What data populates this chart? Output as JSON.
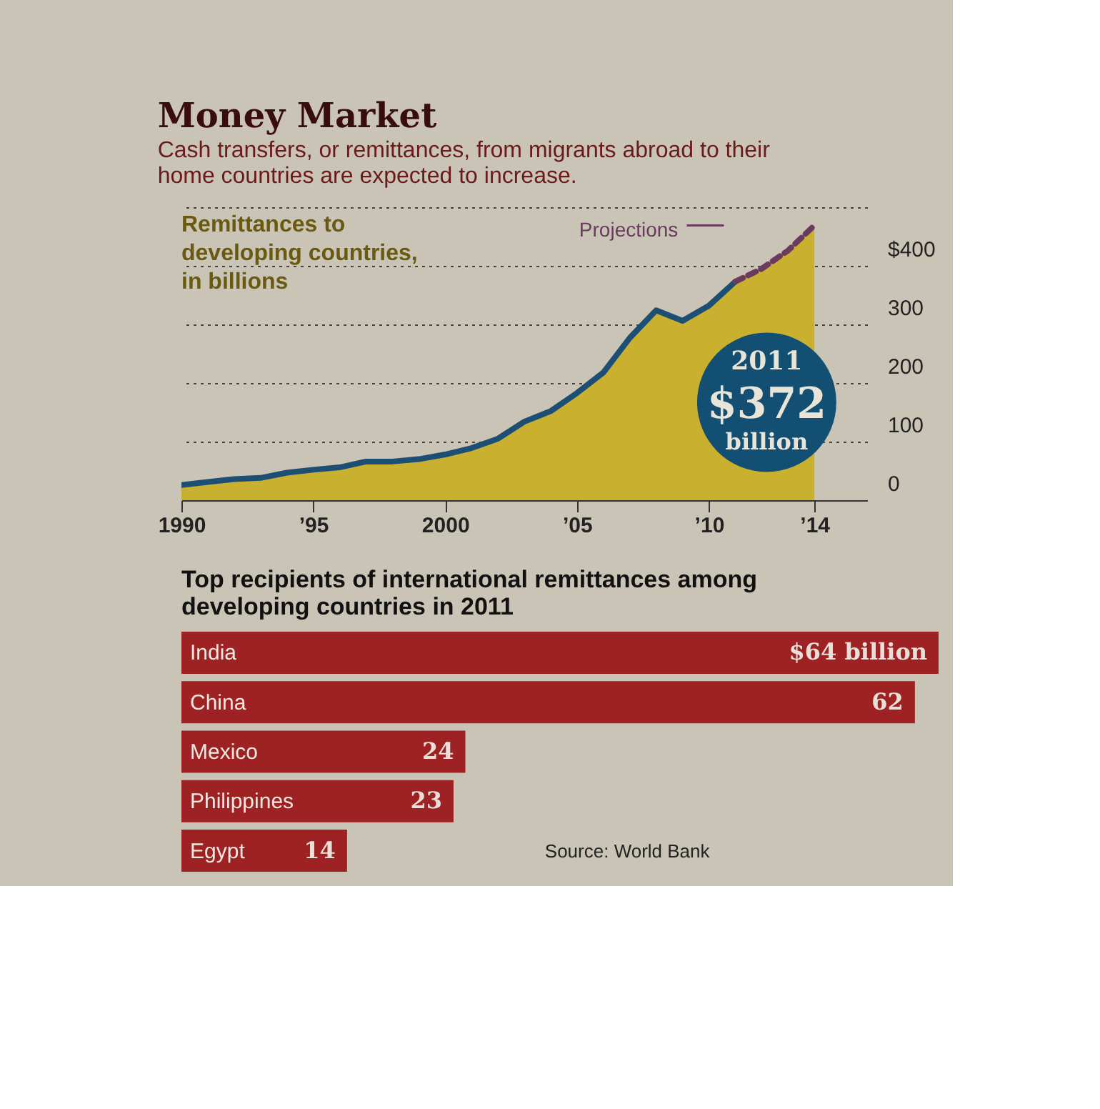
{
  "chart_data": [
    {
      "type": "area",
      "title": "Money Market",
      "subtitle": "Cash transfers, or remittances, from migrants abroad to their home countries are expected to increase.",
      "ylabel": "Remittances to developing countries, in billions",
      "xlim": [
        1990,
        2016
      ],
      "xticks": [
        {
          "value": 1990,
          "label": "1990"
        },
        {
          "value": 1995,
          "label": "’95"
        },
        {
          "value": 2000,
          "label": "2000"
        },
        {
          "value": 2005,
          "label": "’05"
        },
        {
          "value": 2010,
          "label": "’10"
        },
        {
          "value": 2014,
          "label": "’14"
        }
      ],
      "ylim": [
        0,
        500
      ],
      "yticks": [
        0,
        100,
        200,
        300,
        {
          "value": 400,
          "label": "$400"
        },
        {
          "value": 500,
          "label": null
        }
      ],
      "grid": "y",
      "series": [
        {
          "type": "area",
          "color": "#c9b12f",
          "x": [
            1990,
            1991,
            1992,
            1993,
            1994,
            1995,
            1996,
            1997,
            1998,
            1999,
            2000,
            2001,
            2002,
            2003,
            2004,
            2005,
            2006,
            2007,
            2008,
            2009,
            2010,
            2011,
            2012,
            2013,
            2014
          ],
          "values": [
            26,
            31,
            36,
            38,
            47,
            52,
            56,
            66,
            66,
            70,
            78,
            89,
            105,
            134,
            152,
            183,
            218,
            277,
            324,
            306,
            332,
            373,
            395,
            426,
            469
          ]
        },
        {
          "type": "line",
          "color": "#1d4f74",
          "line_style": "solid",
          "x": [
            1990,
            1991,
            1992,
            1993,
            1994,
            1995,
            1996,
            1997,
            1998,
            1999,
            2000,
            2001,
            2002,
            2003,
            2004,
            2005,
            2006,
            2007,
            2008,
            2009,
            2010,
            2011
          ],
          "values": [
            26,
            31,
            36,
            38,
            47,
            52,
            56,
            66,
            66,
            70,
            78,
            89,
            105,
            134,
            152,
            183,
            218,
            277,
            324,
            306,
            332,
            373
          ]
        },
        {
          "type": "line",
          "name": "Projections",
          "color": "#6b3b5e",
          "line_style": "dashed",
          "x": [
            2011,
            2012,
            2013,
            2014
          ],
          "values": [
            373,
            395,
            426,
            469
          ]
        }
      ],
      "annotations": [
        {
          "text": "2011 $372 billion",
          "x": 2011,
          "y": 372
        }
      ]
    },
    {
      "type": "bar",
      "orientation": "horizontal",
      "title": "Top recipients of international remittances among developing countries in 2011",
      "categories": [
        "India",
        "China",
        "Mexico",
        "Philippines",
        "Egypt"
      ],
      "values": [
        64,
        62,
        24,
        23,
        14
      ],
      "color": "#9e2224",
      "value_labels": [
        "$64 billion",
        "62",
        "24",
        "23",
        "14"
      ],
      "annotations": [
        "Source: World Bank"
      ]
    }
  ]
}
